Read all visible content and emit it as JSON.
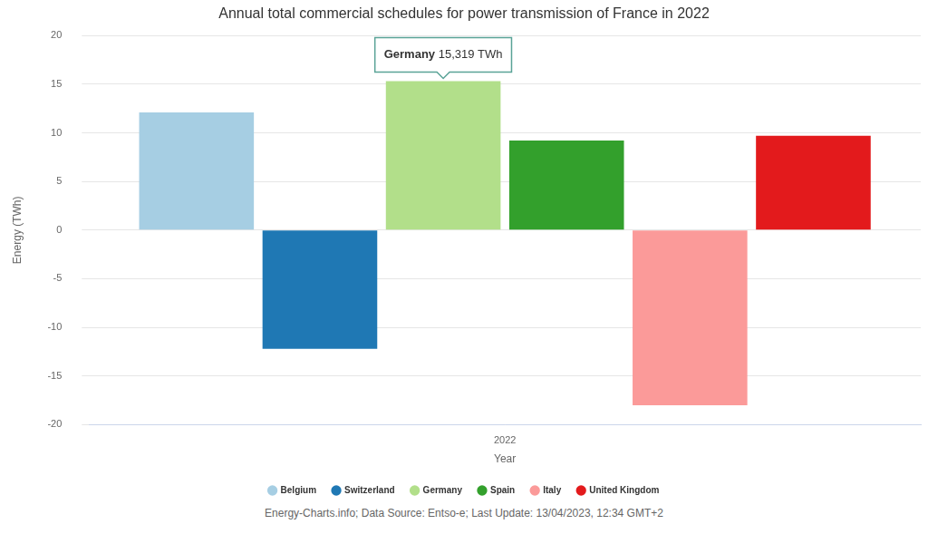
{
  "chart_data": {
    "type": "bar",
    "title": "Annual total commercial schedules for power transmission of France in 2022",
    "x_label": "Year",
    "y_label": "Energy (TWh)",
    "categories": [
      "2022"
    ],
    "series": [
      {
        "name": "Belgium",
        "color": "#a6cee3",
        "values": [
          12.1
        ]
      },
      {
        "name": "Switzerland",
        "color": "#1f78b4",
        "values": [
          -12.2
        ]
      },
      {
        "name": "Germany",
        "color": "#b2df8a",
        "values": [
          15.319
        ]
      },
      {
        "name": "Spain",
        "color": "#33a02c",
        "values": [
          9.2
        ]
      },
      {
        "name": "Italy",
        "color": "#fb9a99",
        "values": [
          -18.0
        ]
      },
      {
        "name": "United Kingdom",
        "color": "#e31a1c",
        "values": [
          9.7
        ]
      }
    ],
    "ylim": [
      -20,
      20
    ],
    "yticks": [
      -20,
      -15,
      -10,
      -5,
      0,
      5,
      10,
      15,
      20
    ],
    "grid": true,
    "legend": "bottom",
    "annotations": [
      {
        "text": "Germany 15,319 TWh",
        "series": "Germany"
      }
    ],
    "source": "Energy-Charts.info; Data Source: Entso-e; Last Update: 13/04/2023, 12:34 GMT+2"
  }
}
